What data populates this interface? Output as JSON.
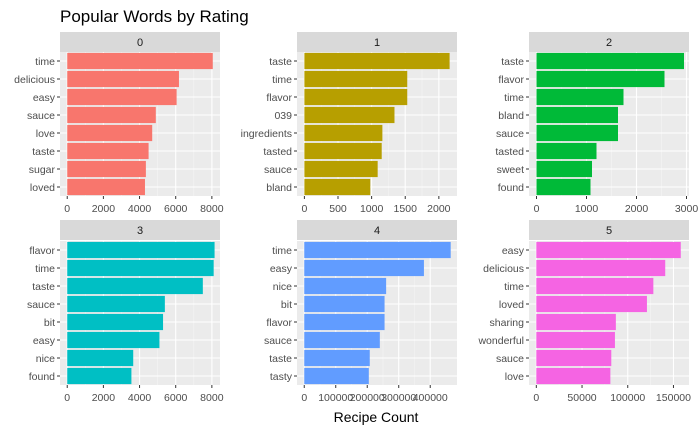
{
  "chart_data": {
    "type": "bar",
    "orientation": "horizontal",
    "title": "Popular Words by Rating",
    "xlabel": "Recipe Count",
    "ylabel": "",
    "grid": true,
    "legend": "none",
    "facets": [
      {
        "label": "0",
        "color": "#F8766D",
        "categories": [
          "time",
          "delicious",
          "easy",
          "sauce",
          "love",
          "taste",
          "sugar",
          "loved"
        ],
        "values": [
          8050,
          6180,
          6050,
          4900,
          4700,
          4500,
          4350,
          4300
        ],
        "xlim": [
          -400,
          8450
        ],
        "ticks": [
          0,
          2000,
          4000,
          6000,
          8000
        ],
        "tick_labels": [
          "0",
          "2000",
          "4000",
          "6000",
          "8000"
        ]
      },
      {
        "label": "1",
        "color": "#B79F00",
        "categories": [
          "taste",
          "time",
          "flavor",
          "039",
          "ingredients",
          "tasted",
          "sauce",
          "bland"
        ],
        "values": [
          2160,
          1530,
          1530,
          1340,
          1160,
          1150,
          1090,
          980
        ],
        "xlim": [
          -110,
          2270
        ],
        "ticks": [
          0,
          500,
          1000,
          1500,
          2000
        ],
        "tick_labels": [
          "0",
          "500",
          "1000",
          "1500",
          "2000"
        ]
      },
      {
        "label": "2",
        "color": "#00BA38",
        "categories": [
          "taste",
          "flavor",
          "time",
          "bland",
          "sauce",
          "tasted",
          "sweet",
          "found"
        ],
        "values": [
          2950,
          2560,
          1740,
          1630,
          1630,
          1200,
          1110,
          1080
        ],
        "xlim": [
          -150,
          3050
        ],
        "ticks": [
          0,
          1000,
          2000,
          3000
        ],
        "tick_labels": [
          "0",
          "1000",
          "2000",
          "3000"
        ]
      },
      {
        "label": "3",
        "color": "#00BFC4",
        "categories": [
          "flavor",
          "time",
          "taste",
          "sauce",
          "bit",
          "easy",
          "nice",
          "found"
        ],
        "values": [
          8150,
          8100,
          7500,
          5400,
          5300,
          5100,
          3650,
          3550
        ],
        "xlim": [
          -400,
          8450
        ],
        "ticks": [
          0,
          2000,
          4000,
          6000,
          8000
        ],
        "tick_labels": [
          "0",
          "2000",
          "4000",
          "6000",
          "8000"
        ]
      },
      {
        "label": "4",
        "color": "#619CFF",
        "categories": [
          "time",
          "easy",
          "nice",
          "bit",
          "flavor",
          "sauce",
          "taste",
          "tasty"
        ],
        "values": [
          465000,
          380000,
          260000,
          255000,
          255000,
          240000,
          208000,
          205000
        ],
        "xlim": [
          -23000,
          485000
        ],
        "ticks": [
          0,
          100000,
          200000,
          300000,
          400000
        ],
        "tick_labels": [
          "0",
          "100000",
          "200000",
          "300000",
          "400000"
        ]
      },
      {
        "label": "5",
        "color": "#F564E3",
        "categories": [
          "easy",
          "delicious",
          "time",
          "loved",
          "sharing",
          "wonderful",
          "sauce",
          "love"
        ],
        "values": [
          158000,
          141000,
          128000,
          121000,
          87000,
          86000,
          82000,
          81000
        ],
        "xlim": [
          -8000,
          167000
        ],
        "ticks": [
          0,
          50000,
          100000,
          150000
        ],
        "tick_labels": [
          "0",
          "50000",
          "100000",
          "150000"
        ]
      }
    ]
  }
}
